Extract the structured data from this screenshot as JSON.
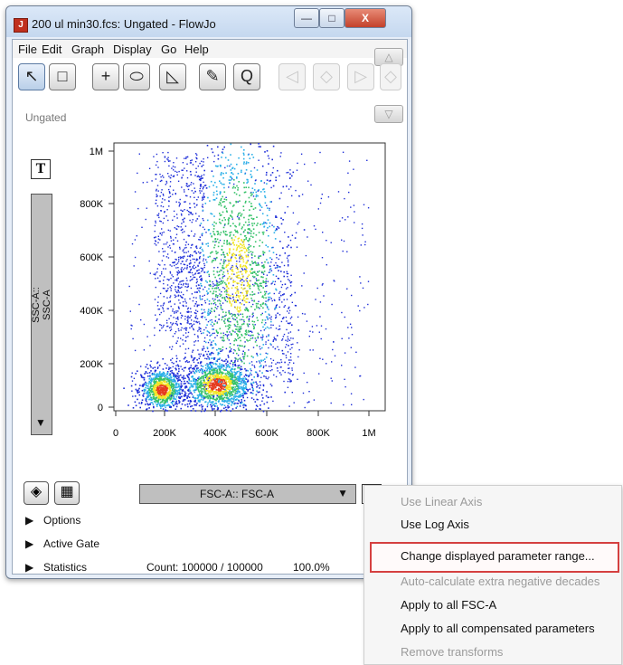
{
  "window": {
    "title": "200 ul min30.fcs: Ungated - FlowJo",
    "app_icon_glyph": "J",
    "controls": {
      "minimize": "—",
      "maximize": "□",
      "close": "X"
    }
  },
  "menubar": [
    "File",
    "Edit",
    "Graph",
    "Display",
    "Go",
    "Help"
  ],
  "toolbar": {
    "tools": [
      "pointer",
      "rectangle",
      "crosshair",
      "ellipse",
      "polygon",
      "pencil",
      "quad"
    ],
    "glyphs": {
      "pointer": "↖",
      "rectangle": "□",
      "crosshair": "+",
      "ellipse": "⬭",
      "polygon": "◺",
      "pencil": "✎",
      "quad": "Q"
    },
    "nav_glyphs": {
      "prev": "◁",
      "diamond": "◇",
      "next": "▷"
    },
    "scroll_glyphs": {
      "up": "△",
      "down": "▽"
    }
  },
  "gate_label": "Ungated",
  "plot": {
    "y_param_label": "SSC-A:: SSC-A",
    "x_param_label": "FSC-A:: FSC-A",
    "y_ticks": [
      "1M",
      "800K",
      "600K",
      "400K",
      "200K",
      "0"
    ],
    "x_ticks": [
      "0",
      "200K",
      "400K",
      "600K",
      "800K",
      "1M"
    ],
    "transform_button": "T",
    "dropdown_arrow": "▼"
  },
  "chart_data": {
    "type": "scatter",
    "title": "",
    "xlabel": "FSC-A:: FSC-A",
    "ylabel": "SSC-A:: SSC-A",
    "x_ticks": [
      "0",
      "200K",
      "400K",
      "600K",
      "800K",
      "1M"
    ],
    "y_ticks": [
      "0",
      "200K",
      "400K",
      "600K",
      "800K",
      "1M"
    ],
    "xlim": [
      0,
      1000000
    ],
    "ylim": [
      0,
      1000000
    ],
    "density_colors": [
      "#1d2dd8",
      "#2bb0e8",
      "#37c26a",
      "#f2e524",
      "#e53a1f"
    ],
    "clusters": [
      {
        "x_center": 180000,
        "y_center": 70000,
        "x_spread": 25000,
        "y_spread": 25000,
        "peak": "high"
      },
      {
        "x_center": 400000,
        "y_center": 90000,
        "x_spread": 40000,
        "y_spread": 30000,
        "peak": "very high"
      },
      {
        "x_center": 480000,
        "y_center": 520000,
        "x_spread": 55000,
        "y_spread": 180000,
        "peak": "medium"
      }
    ]
  },
  "bottom": {
    "options_label": "Options",
    "active_gate_label": "Active Gate",
    "statistics_label": "Statistics",
    "count_text": "Count: 100000 / 100000",
    "percent_text": "100.0%",
    "expand_arrow": "▶",
    "icon_glyphs": {
      "layers": "◈",
      "stats": "▦"
    }
  },
  "context_menu": {
    "items": [
      {
        "label": "Use Linear Axis",
        "enabled": false
      },
      {
        "label": "Use Log Axis",
        "enabled": true
      },
      {
        "label": "Change displayed parameter range...",
        "enabled": true,
        "highlighted": true
      },
      {
        "label": "Auto-calculate extra negative decades",
        "enabled": false
      },
      {
        "label": "Apply to all FSC-A",
        "enabled": true
      },
      {
        "label": "Apply to all compensated parameters",
        "enabled": true
      },
      {
        "label": "Remove transforms",
        "enabled": false
      }
    ]
  }
}
